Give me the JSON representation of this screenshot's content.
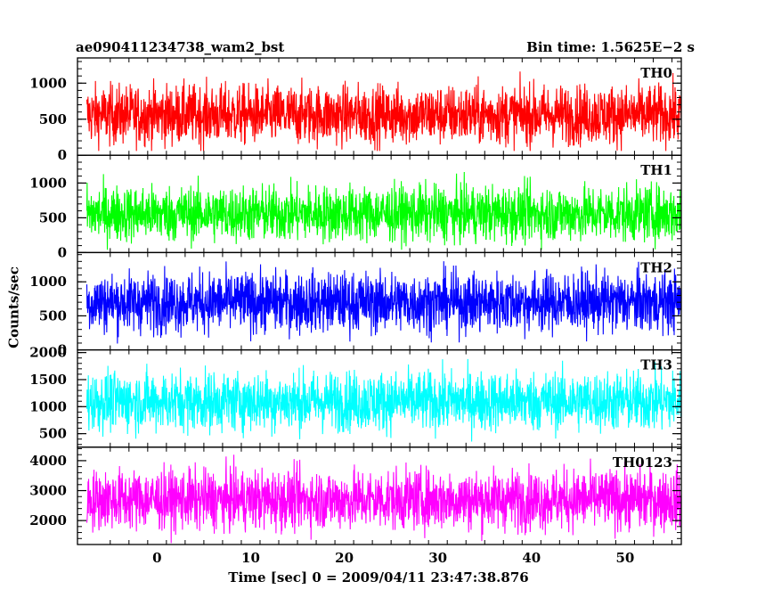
{
  "header": {
    "title": "ae090411234738_wam2_bst",
    "bin_time": "Bin time: 1.5625E−2 s"
  },
  "axes": {
    "xlabel": "Time [sec] 0 = 2009/04/11 23:47:38.876",
    "ylabel": "Counts/sec"
  },
  "chart_data": {
    "type": "line",
    "x_range": [
      -8.5,
      56
    ],
    "x_ticks": [
      0,
      10,
      20,
      30,
      40,
      50
    ],
    "x_tick_labels": [
      "0",
      "10",
      "20",
      "30",
      "40",
      "50"
    ],
    "bin_time_s": 0.015625,
    "series_x_range": [
      -7.5,
      56
    ],
    "panels": [
      {
        "name": "TH0",
        "color": "#ff0000",
        "ylim": [
          0,
          1350
        ],
        "yticks": [
          0,
          500,
          1000
        ],
        "ytick_labels": [
          "0",
          "500",
          "1000"
        ],
        "mean": 560,
        "envelope_low": 60,
        "envelope_high": 1330
      },
      {
        "name": "TH1",
        "color": "#00ff00",
        "ylim": [
          0,
          1400
        ],
        "yticks": [
          0,
          500,
          1000
        ],
        "ytick_labels": [
          "0",
          "500",
          "1000"
        ],
        "mean": 560,
        "envelope_low": 40,
        "envelope_high": 1280
      },
      {
        "name": "TH2",
        "color": "#0000ff",
        "ylim": [
          0,
          1430
        ],
        "yticks": [
          0,
          500,
          1000
        ],
        "ytick_labels": [
          "0",
          "500",
          "1000"
        ],
        "mean": 700,
        "envelope_low": 60,
        "envelope_high": 1420
      },
      {
        "name": "TH3",
        "color": "#00ffff",
        "ylim": [
          250,
          2050
        ],
        "yticks": [
          500,
          1000,
          1500,
          2000
        ],
        "ytick_labels": [
          "500",
          "1000",
          "1500",
          "2000"
        ],
        "mean": 1100,
        "envelope_low": 300,
        "envelope_high": 2000
      },
      {
        "name": "TH0123",
        "color": "#ff00ff",
        "ylim": [
          1200,
          4450
        ],
        "yticks": [
          2000,
          3000,
          4000
        ],
        "ytick_labels": [
          "2000",
          "3000",
          "4000"
        ],
        "mean": 2700,
        "envelope_low": 1250,
        "envelope_high": 4350
      }
    ]
  }
}
